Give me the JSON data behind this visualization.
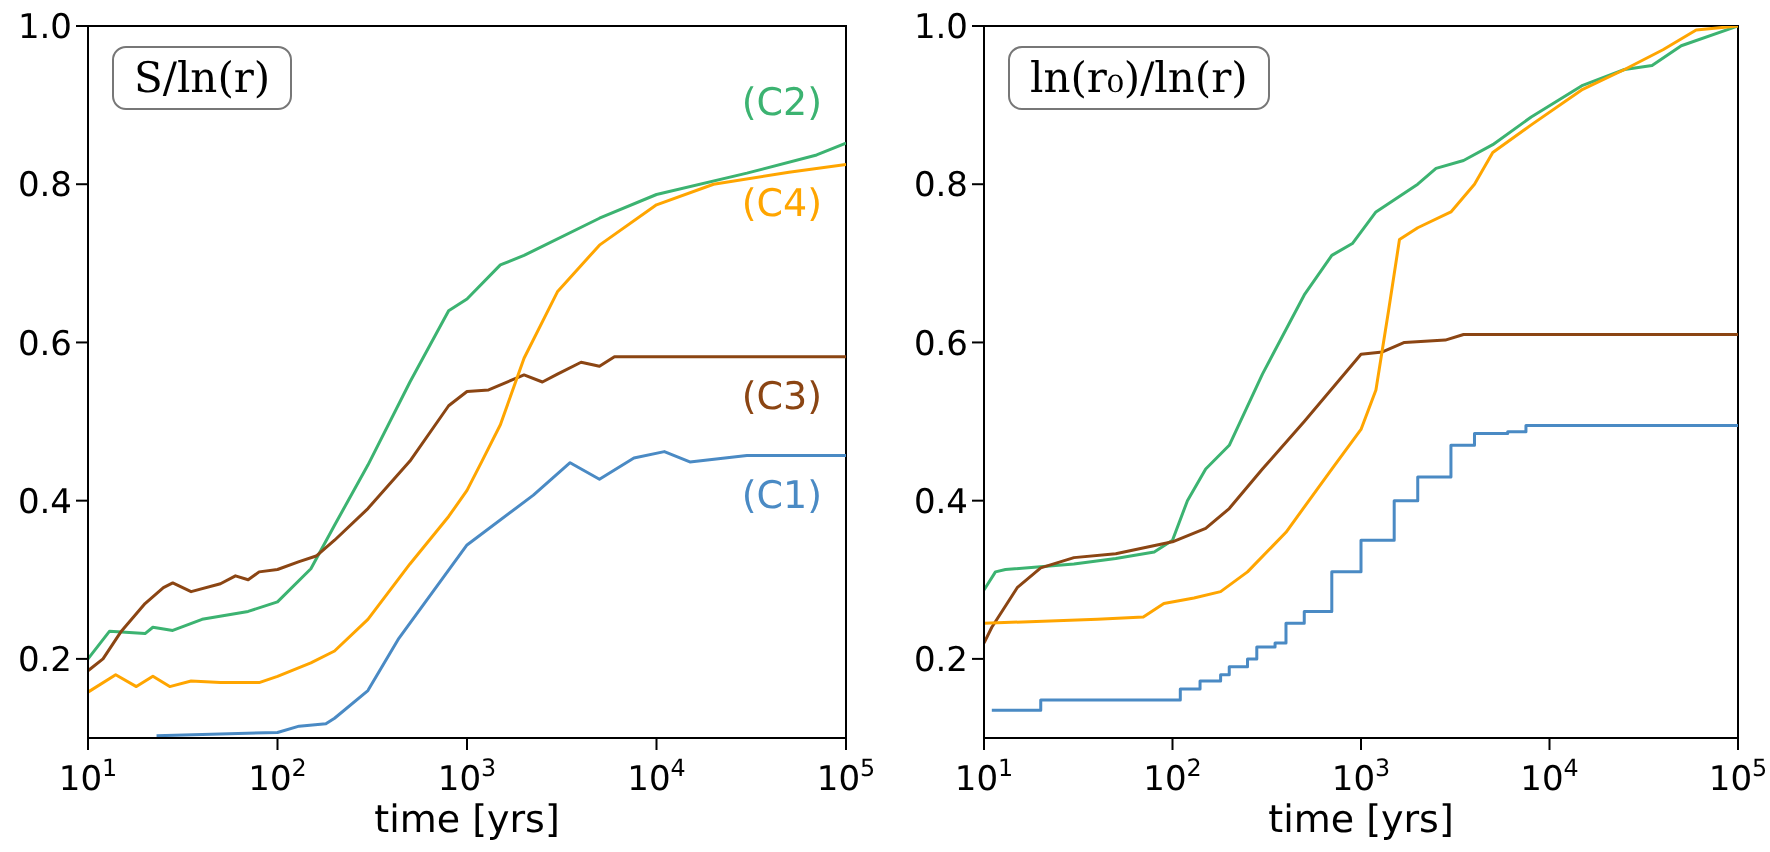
{
  "chart_data": [
    {
      "type": "line",
      "title": "S/ln(r)",
      "xlabel": "time [yrs]",
      "log": "x",
      "xlim": [
        10,
        100000
      ],
      "ylim": [
        0.1,
        1.0
      ],
      "xticks": [
        {
          "value": 10,
          "label": "10$^{1}$"
        },
        {
          "value": 100,
          "label": "10$^{2}$"
        },
        {
          "value": 1000,
          "label": "10$^{3}$"
        },
        {
          "value": 10000,
          "label": "10$^{4}$"
        },
        {
          "value": 100000,
          "label": "10$^{5}$"
        }
      ],
      "yticks": [
        0.2,
        0.4,
        0.6,
        0.8,
        {
          "value": 1,
          "label": "1.0"
        }
      ],
      "grid": false,
      "legend": false,
      "series": [
        {
          "name": "(C1)",
          "color": "#4a8ac4",
          "x": [
            23,
            50,
            100,
            130,
            180,
            200,
            300,
            437,
            1000,
            2240,
            3500,
            5000,
            7600,
            11000,
            15000,
            30000,
            100000
          ],
          "values": [
            0.103,
            0.105,
            0.107,
            0.115,
            0.118,
            0.125,
            0.16,
            0.226,
            0.344,
            0.407,
            0.448,
            0.427,
            0.454,
            0.462,
            0.449,
            0.457,
            0.457
          ]
        },
        {
          "name": "(C2)",
          "color": "#3cb371",
          "x": [
            10,
            13,
            20,
            22,
            28,
            40,
            70,
            100,
            150,
            200,
            300,
            500,
            800,
            1000,
            1500,
            2000,
            5000,
            10000,
            30000,
            70000,
            100000
          ],
          "values": [
            0.2,
            0.235,
            0.232,
            0.24,
            0.236,
            0.25,
            0.26,
            0.272,
            0.314,
            0.369,
            0.445,
            0.55,
            0.64,
            0.655,
            0.698,
            0.71,
            0.757,
            0.787,
            0.814,
            0.837,
            0.852
          ]
        },
        {
          "name": "(C3)",
          "color": "#8b4513",
          "x": [
            10,
            12,
            15,
            20,
            25,
            28,
            35,
            50,
            60,
            70,
            80,
            100,
            130,
            160,
            200,
            300,
            500,
            800,
            1000,
            1300,
            2000,
            2500,
            3000,
            4000,
            5000,
            6000,
            100000
          ],
          "values": [
            0.185,
            0.2,
            0.235,
            0.27,
            0.29,
            0.296,
            0.285,
            0.295,
            0.305,
            0.3,
            0.31,
            0.313,
            0.323,
            0.33,
            0.35,
            0.39,
            0.45,
            0.52,
            0.538,
            0.54,
            0.559,
            0.55,
            0.56,
            0.575,
            0.57,
            0.582,
            0.582
          ]
        },
        {
          "name": "(C4)",
          "color": "#ffa500",
          "x": [
            10,
            14,
            18,
            22,
            27,
            35,
            50,
            80,
            100,
            150,
            200,
            300,
            500,
            800,
            1000,
            1200,
            1500,
            2000,
            3000,
            5000,
            10000,
            20000,
            50000,
            100000
          ],
          "values": [
            0.158,
            0.18,
            0.165,
            0.178,
            0.165,
            0.172,
            0.17,
            0.17,
            0.178,
            0.195,
            0.21,
            0.25,
            0.32,
            0.38,
            0.413,
            0.45,
            0.496,
            0.58,
            0.664,
            0.723,
            0.774,
            0.8,
            0.815,
            0.825
          ]
        }
      ]
    },
    {
      "type": "line",
      "title": "ln(r₀)/ln(r)",
      "xlabel": "time [yrs]",
      "log": "x",
      "xlim": [
        10,
        100000
      ],
      "ylim": [
        0.1,
        1.0
      ],
      "xticks": [
        {
          "value": 10,
          "label": "10$^{1}$"
        },
        {
          "value": 100,
          "label": "10$^{2}$"
        },
        {
          "value": 1000,
          "label": "10$^{3}$"
        },
        {
          "value": 10000,
          "label": "10$^{4}$"
        },
        {
          "value": 100000,
          "label": "10$^{5}$"
        }
      ],
      "yticks": [
        0.2,
        0.4,
        0.6,
        0.8,
        {
          "value": 1,
          "label": "1.0"
        }
      ],
      "grid": false,
      "legend": false,
      "series": [
        {
          "type": "step",
          "color": "#4a8ac4",
          "x": [
            11,
            20,
            110,
            140,
            180,
            200,
            250,
            280,
            350,
            400,
            500,
            700,
            1000,
            1500,
            2000,
            3000,
            4000,
            6000,
            7500,
            100000
          ],
          "values": [
            0.135,
            0.148,
            0.162,
            0.172,
            0.18,
            0.19,
            0.2,
            0.215,
            0.22,
            0.245,
            0.26,
            0.31,
            0.35,
            0.4,
            0.43,
            0.47,
            0.485,
            0.487,
            0.495,
            0.495
          ]
        },
        {
          "color": "#3cb371",
          "x": [
            10,
            11.5,
            13,
            30,
            50,
            80,
            100,
            120,
            150,
            200,
            300,
            500,
            700,
            900,
            1200,
            2000,
            2500,
            3500,
            5000,
            8000,
            15000,
            25000,
            35000,
            50000,
            100000
          ],
          "values": [
            0.287,
            0.31,
            0.313,
            0.32,
            0.327,
            0.335,
            0.35,
            0.4,
            0.44,
            0.47,
            0.56,
            0.66,
            0.71,
            0.725,
            0.765,
            0.8,
            0.82,
            0.83,
            0.85,
            0.885,
            0.925,
            0.945,
            0.95,
            0.975,
            1.0
          ]
        },
        {
          "color": "#8b4513",
          "x": [
            10,
            11,
            15,
            20,
            30,
            50,
            100,
            150,
            200,
            300,
            500,
            1000,
            1300,
            1700,
            2800,
            3500,
            100000
          ],
          "values": [
            0.22,
            0.24,
            0.29,
            0.315,
            0.328,
            0.333,
            0.348,
            0.365,
            0.39,
            0.44,
            0.5,
            0.585,
            0.588,
            0.6,
            0.603,
            0.61,
            0.61
          ]
        },
        {
          "color": "#ffa500",
          "x": [
            10,
            40,
            70,
            90,
            130,
            180,
            250,
            400,
            700,
            1000,
            1200,
            1400,
            1600,
            2000,
            3000,
            4000,
            5000,
            8000,
            15000,
            25000,
            40000,
            60000,
            100000
          ],
          "values": [
            0.245,
            0.25,
            0.253,
            0.27,
            0.277,
            0.285,
            0.31,
            0.36,
            0.44,
            0.49,
            0.54,
            0.64,
            0.73,
            0.745,
            0.765,
            0.8,
            0.84,
            0.875,
            0.92,
            0.945,
            0.97,
            0.995,
            1.0
          ]
        }
      ]
    }
  ]
}
